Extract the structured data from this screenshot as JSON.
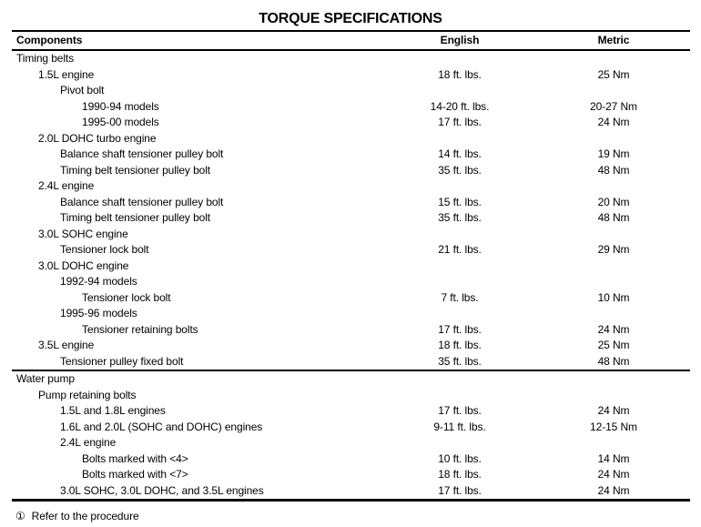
{
  "title": "TORQUE SPECIFICATIONS",
  "columns": {
    "components": "Components",
    "english": "English",
    "metric": "Metric"
  },
  "sections": [
    {
      "name": "Timing belts",
      "rows": [
        {
          "component": "Timing belts",
          "indent": 0,
          "english": "",
          "metric": ""
        },
        {
          "component": "1.5L engine",
          "indent": 1,
          "english": "18 ft. lbs.",
          "metric": "25 Nm"
        },
        {
          "component": "Pivot bolt",
          "indent": 2,
          "english": "",
          "metric": ""
        },
        {
          "component": "1990-94 models",
          "indent": 3,
          "english": "14-20 ft. lbs.",
          "metric": "20-27 Nm"
        },
        {
          "component": "1995-00 models",
          "indent": 3,
          "english": "17 ft. lbs.",
          "metric": "24 Nm"
        },
        {
          "component": "2.0L DOHC turbo engine",
          "indent": 1,
          "english": "",
          "metric": ""
        },
        {
          "component": "Balance shaft tensioner pulley bolt",
          "indent": 2,
          "english": "14 ft. lbs.",
          "metric": "19 Nm"
        },
        {
          "component": "Timing belt tensioner pulley bolt",
          "indent": 2,
          "english": "35 ft. lbs.",
          "metric": "48 Nm"
        },
        {
          "component": "2.4L engine",
          "indent": 1,
          "english": "",
          "metric": ""
        },
        {
          "component": "Balance shaft tensioner pulley bolt",
          "indent": 2,
          "english": "15 ft. lbs.",
          "metric": "20 Nm"
        },
        {
          "component": "Timing belt tensioner pulley bolt",
          "indent": 2,
          "english": "35 ft. lbs.",
          "metric": "48 Nm"
        },
        {
          "component": "3.0L SOHC engine",
          "indent": 1,
          "english": "",
          "metric": ""
        },
        {
          "component": "Tensioner lock bolt",
          "indent": 2,
          "english": "21 ft. lbs.",
          "metric": "29 Nm"
        },
        {
          "component": "3.0L DOHC engine",
          "indent": 1,
          "english": "",
          "metric": ""
        },
        {
          "component": "1992-94 models",
          "indent": 2,
          "english": "",
          "metric": ""
        },
        {
          "component": "Tensioner lock bolt",
          "indent": 3,
          "english": "7 ft. lbs.",
          "metric": "10 Nm"
        },
        {
          "component": "1995-96 models",
          "indent": 2,
          "english": "",
          "metric": ""
        },
        {
          "component": "Tensioner retaining bolts",
          "indent": 3,
          "english": "17 ft. lbs.",
          "metric": "24 Nm"
        },
        {
          "component": "3.5L engine",
          "indent": 1,
          "english": "18 ft. lbs.",
          "metric": "25 Nm"
        },
        {
          "component": "Tensioner pulley fixed bolt",
          "indent": 2,
          "english": "35 ft. lbs.",
          "metric": "48 Nm"
        }
      ]
    },
    {
      "name": "Water pump",
      "rows": [
        {
          "component": "Water pump",
          "indent": 0,
          "english": "",
          "metric": ""
        },
        {
          "component": "Pump retaining bolts",
          "indent": 1,
          "english": "",
          "metric": ""
        },
        {
          "component": "1.5L and 1.8L engines",
          "indent": 2,
          "english": "17 ft. lbs.",
          "metric": "24 Nm"
        },
        {
          "component": "1.6L and 2.0L (SOHC and DOHC) engines",
          "indent": 2,
          "english": "9-11 ft. lbs.",
          "metric": "12-15 Nm"
        },
        {
          "component": "2.4L engine",
          "indent": 2,
          "english": "",
          "metric": ""
        },
        {
          "component": "Bolts marked with <4>",
          "indent": 3,
          "english": "10 ft. lbs.",
          "metric": "14 Nm"
        },
        {
          "component": "Bolts marked with <7>",
          "indent": 3,
          "english": "18 ft. lbs.",
          "metric": "24 Nm"
        },
        {
          "component": "3.0L SOHC, 3.0L DOHC, and 3.5L engines",
          "indent": 2,
          "english": "17 ft. lbs.",
          "metric": "24 Nm"
        }
      ]
    }
  ],
  "footnote": {
    "marker": "①",
    "text": "Refer to the procedure"
  }
}
